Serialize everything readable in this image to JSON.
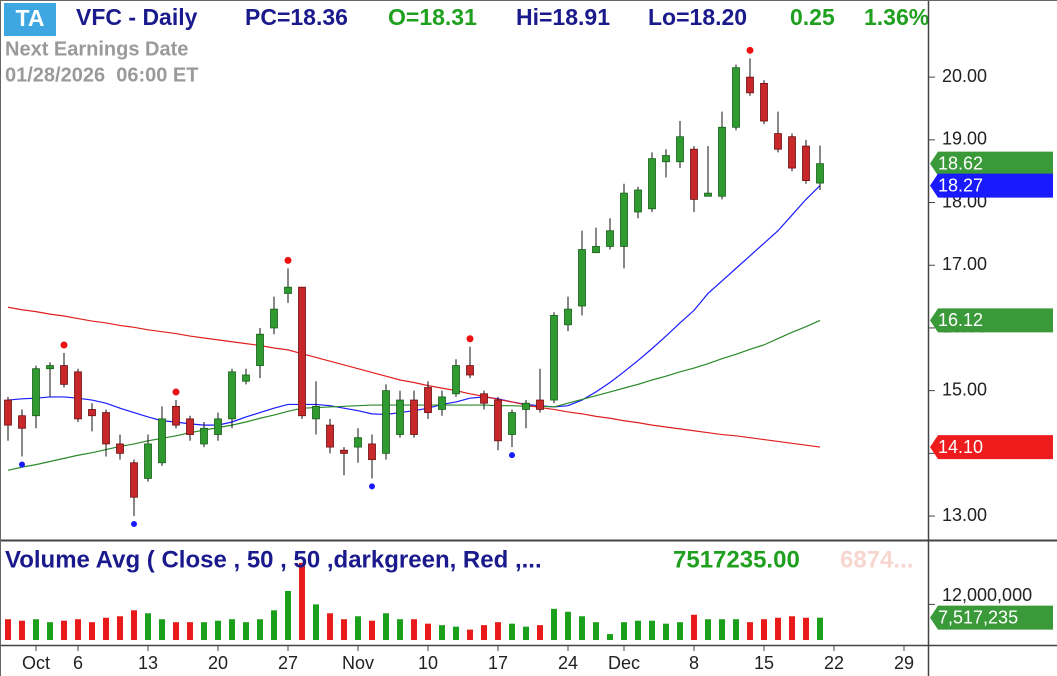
{
  "chart_data": {
    "type": "candlestick",
    "badge": "TA",
    "title": "VFC - Daily",
    "stats": [
      {
        "text": "PC=18.36",
        "color": "#1a1a8c"
      },
      {
        "text": "O=18.31",
        "color": "#1fa01f"
      },
      {
        "text": "Hi=18.91",
        "color": "#1a1a8c"
      },
      {
        "text": "Lo=18.20",
        "color": "#1a1a8c"
      },
      {
        "text": "0.25",
        "color": "#1fa01f"
      },
      {
        "text": "1.36%",
        "color": "#1fa01f"
      }
    ],
    "annotations": [
      "Next Earnings Date",
      "01/28/2026  06:00 ET"
    ],
    "categories": [
      null,
      null,
      "Oct",
      null,
      null,
      "6",
      null,
      null,
      null,
      null,
      "13",
      null,
      null,
      null,
      null,
      "20",
      null,
      null,
      null,
      null,
      "27",
      null,
      null,
      null,
      null,
      "Nov",
      null,
      null,
      null,
      null,
      "10",
      null,
      null,
      null,
      null,
      "17",
      null,
      null,
      null,
      null,
      "24",
      null,
      null,
      null,
      "Dec",
      null,
      null,
      null,
      null,
      "8",
      null,
      null,
      null,
      null,
      "15",
      null,
      null,
      null,
      null,
      "22",
      null,
      null,
      null,
      null,
      "29"
    ],
    "open": [
      14.85,
      14.6,
      14.6,
      15.35,
      15.4,
      15.3,
      14.7,
      14.65,
      14.15,
      13.85,
      13.6,
      13.85,
      14.75,
      14.55,
      14.15,
      14.3,
      14.55,
      15.15,
      15.4,
      16.0,
      16.55,
      16.65,
      14.55,
      14.45,
      14.05,
      14.1,
      14.15,
      14.0,
      14.3,
      14.85,
      15.05,
      14.7,
      14.95,
      15.4,
      14.95,
      14.85,
      14.3,
      14.7,
      14.85,
      14.85,
      16.05,
      16.35,
      17.2,
      17.3,
      17.3,
      17.85,
      17.9,
      18.65,
      18.65,
      18.85,
      18.1,
      18.1,
      19.2,
      20.0,
      19.9,
      19.1,
      19.05,
      18.9,
      18.31,
      null,
      null,
      null,
      null,
      null,
      null
    ],
    "high": [
      14.9,
      14.7,
      15.4,
      15.45,
      15.6,
      15.35,
      14.8,
      14.7,
      14.3,
      13.9,
      14.3,
      14.75,
      14.85,
      14.6,
      14.5,
      14.65,
      15.35,
      15.35,
      16.0,
      16.5,
      16.95,
      16.65,
      15.15,
      14.55,
      14.1,
      14.4,
      14.3,
      15.1,
      15.0,
      15.0,
      15.15,
      15.0,
      15.5,
      15.7,
      15.0,
      14.9,
      14.7,
      14.85,
      15.35,
      16.25,
      16.5,
      17.55,
      17.6,
      17.75,
      18.3,
      18.25,
      18.8,
      18.85,
      19.3,
      18.9,
      18.9,
      19.45,
      20.2,
      20.3,
      19.95,
      19.45,
      19.1,
      19.0,
      18.91,
      null,
      null,
      null,
      null,
      null,
      null
    ],
    "low": [
      14.2,
      13.95,
      14.4,
      14.9,
      15.05,
      14.5,
      14.35,
      13.95,
      13.9,
      13.0,
      13.55,
      13.8,
      14.4,
      14.2,
      14.1,
      14.2,
      14.4,
      15.1,
      15.2,
      15.9,
      16.4,
      14.55,
      14.3,
      14.0,
      13.65,
      13.85,
      13.6,
      13.9,
      14.25,
      14.25,
      14.55,
      14.6,
      14.9,
      15.2,
      14.7,
      14.05,
      14.1,
      14.4,
      14.65,
      14.8,
      15.95,
      16.2,
      17.2,
      17.25,
      16.95,
      17.75,
      17.85,
      18.4,
      18.55,
      17.85,
      18.1,
      18.05,
      19.15,
      19.7,
      19.25,
      18.8,
      18.5,
      18.3,
      18.2,
      null,
      null,
      null,
      null,
      null,
      null
    ],
    "close": [
      14.45,
      14.4,
      15.35,
      15.4,
      15.1,
      14.55,
      14.6,
      14.15,
      14.0,
      13.3,
      14.15,
      14.55,
      14.45,
      14.3,
      14.4,
      14.55,
      15.3,
      15.25,
      15.9,
      16.3,
      16.65,
      14.6,
      14.75,
      14.1,
      14.0,
      14.25,
      13.9,
      15.0,
      14.85,
      14.3,
      14.65,
      14.9,
      15.4,
      15.25,
      14.8,
      14.2,
      14.65,
      14.8,
      14.7,
      16.2,
      16.3,
      17.25,
      17.3,
      17.55,
      18.15,
      18.2,
      18.7,
      18.75,
      19.05,
      18.05,
      18.15,
      19.2,
      20.15,
      19.75,
      19.3,
      18.85,
      18.55,
      18.35,
      18.62,
      null,
      null,
      null,
      null,
      null,
      null
    ],
    "up_color": "#2f9a2f",
    "down_color": "#c8282a",
    "swing_highs": [
      4,
      12,
      20,
      33,
      53
    ],
    "swing_lows": [
      1,
      9,
      26,
      36
    ],
    "swing_high_color": "#ee1111",
    "swing_low_color": "#1a1aff",
    "series": [
      {
        "color": "#1a1aff",
        "values": [
          14.85,
          14.87,
          14.88,
          14.9,
          14.9,
          14.88,
          14.85,
          14.8,
          14.72,
          14.65,
          14.58,
          14.52,
          14.5,
          14.47,
          14.45,
          14.45,
          14.5,
          14.58,
          14.65,
          14.72,
          14.78,
          14.78,
          14.78,
          14.76,
          14.72,
          14.68,
          14.63,
          14.62,
          14.65,
          14.68,
          14.72,
          14.78,
          14.82,
          14.88,
          14.9,
          14.87,
          14.82,
          14.78,
          14.76,
          14.74,
          14.76,
          14.85,
          14.98,
          15.13,
          15.3,
          15.48,
          15.67,
          15.87,
          16.08,
          16.28,
          16.55,
          16.75,
          16.95,
          17.15,
          17.35,
          17.55,
          17.8,
          18.05,
          18.27,
          null,
          null,
          null,
          null,
          null,
          null
        ]
      },
      {
        "color": "#2a8a2a",
        "values": [
          13.73,
          13.78,
          13.82,
          13.87,
          13.92,
          13.97,
          14.01,
          14.06,
          14.11,
          14.15,
          14.2,
          14.24,
          14.28,
          14.33,
          14.37,
          14.41,
          14.45,
          14.5,
          14.56,
          14.61,
          14.67,
          14.72,
          14.73,
          14.74,
          14.75,
          14.76,
          14.77,
          14.77,
          14.77,
          14.77,
          14.77,
          14.77,
          14.77,
          14.77,
          14.77,
          14.76,
          14.76,
          14.75,
          14.75,
          14.74,
          14.8,
          14.86,
          14.92,
          14.98,
          15.04,
          15.1,
          15.17,
          15.23,
          15.3,
          15.36,
          15.43,
          15.51,
          15.58,
          15.66,
          15.73,
          15.83,
          15.93,
          16.02,
          16.12,
          null,
          null,
          null,
          null,
          null,
          null
        ]
      },
      {
        "color": "#e02020",
        "values": [
          16.33,
          16.29,
          16.26,
          16.22,
          16.19,
          16.15,
          16.11,
          16.08,
          16.04,
          16.01,
          15.97,
          15.94,
          15.91,
          15.87,
          15.84,
          15.81,
          15.78,
          15.75,
          15.72,
          15.68,
          15.65,
          15.59,
          15.53,
          15.47,
          15.41,
          15.35,
          15.29,
          15.23,
          15.17,
          15.13,
          15.08,
          15.04,
          15.0,
          14.95,
          14.91,
          14.86,
          14.82,
          14.77,
          14.73,
          14.7,
          14.66,
          14.63,
          14.59,
          14.56,
          14.52,
          14.49,
          14.45,
          14.42,
          14.39,
          14.36,
          14.33,
          14.3,
          14.28,
          14.25,
          14.22,
          14.19,
          14.16,
          14.13,
          14.1,
          null,
          null,
          null,
          null,
          null,
          null
        ]
      }
    ],
    "ylim": [
      12.65,
      21.23
    ],
    "yticks": [
      {
        "value": 13,
        "label": "13.00"
      },
      {
        "value": 14,
        "label": "14.00"
      },
      {
        "value": 15,
        "label": "15.00"
      },
      {
        "value": 16,
        "label": "16.00"
      },
      {
        "value": 17,
        "label": "17.00"
      },
      {
        "value": 18,
        "label": "18.00"
      },
      {
        "value": 19,
        "label": "19.00"
      },
      {
        "value": 20,
        "label": "20.00"
      }
    ],
    "price_tags": [
      {
        "value": 18.62,
        "color": "#3a9a3a"
      },
      {
        "value": 18.27,
        "color": "#1a1aff"
      },
      {
        "value": 16.12,
        "color": "#3a9a3a"
      },
      {
        "value": 14.1,
        "label": "14.10",
        "color": "#ee1c1c"
      }
    ],
    "volume": {
      "title": "Volume Avg ( Close , 50 , 50 ,darkgreen, Red ,...",
      "last_label": "7517235.00",
      "avg_label": "6874...",
      "values": [
        7000000,
        6500000,
        7000000,
        6000000,
        6500000,
        7000000,
        6000000,
        7500000,
        8000000,
        10000000,
        9000000,
        7000000,
        6000000,
        6000000,
        6000000,
        6500000,
        7000000,
        6000000,
        7000000,
        10000000,
        16500000,
        26000000,
        12000000,
        9000000,
        7000000,
        8000000,
        6500000,
        9000000,
        7000000,
        7000000,
        5500000,
        5000000,
        4500000,
        3500000,
        5000000,
        6000000,
        5500000,
        4500000,
        5000000,
        10500000,
        9500000,
        8000000,
        6000000,
        2000000,
        6000000,
        6500000,
        6500000,
        5500000,
        6000000,
        8500000,
        7000000,
        7000000,
        7000000,
        6000000,
        7000000,
        7500000,
        8000000,
        7500000,
        7517235,
        null,
        null,
        null,
        null,
        null,
        null
      ],
      "up_color": "#1aa01a",
      "down_color": "#e81a1a",
      "ylim": [
        0,
        32000000
      ],
      "yticks": [
        {
          "value": 12000000,
          "label": "12,000,000"
        }
      ],
      "tag": {
        "value": 7517235,
        "label": "7,517,235",
        "color": "#3a9a3a"
      }
    }
  }
}
